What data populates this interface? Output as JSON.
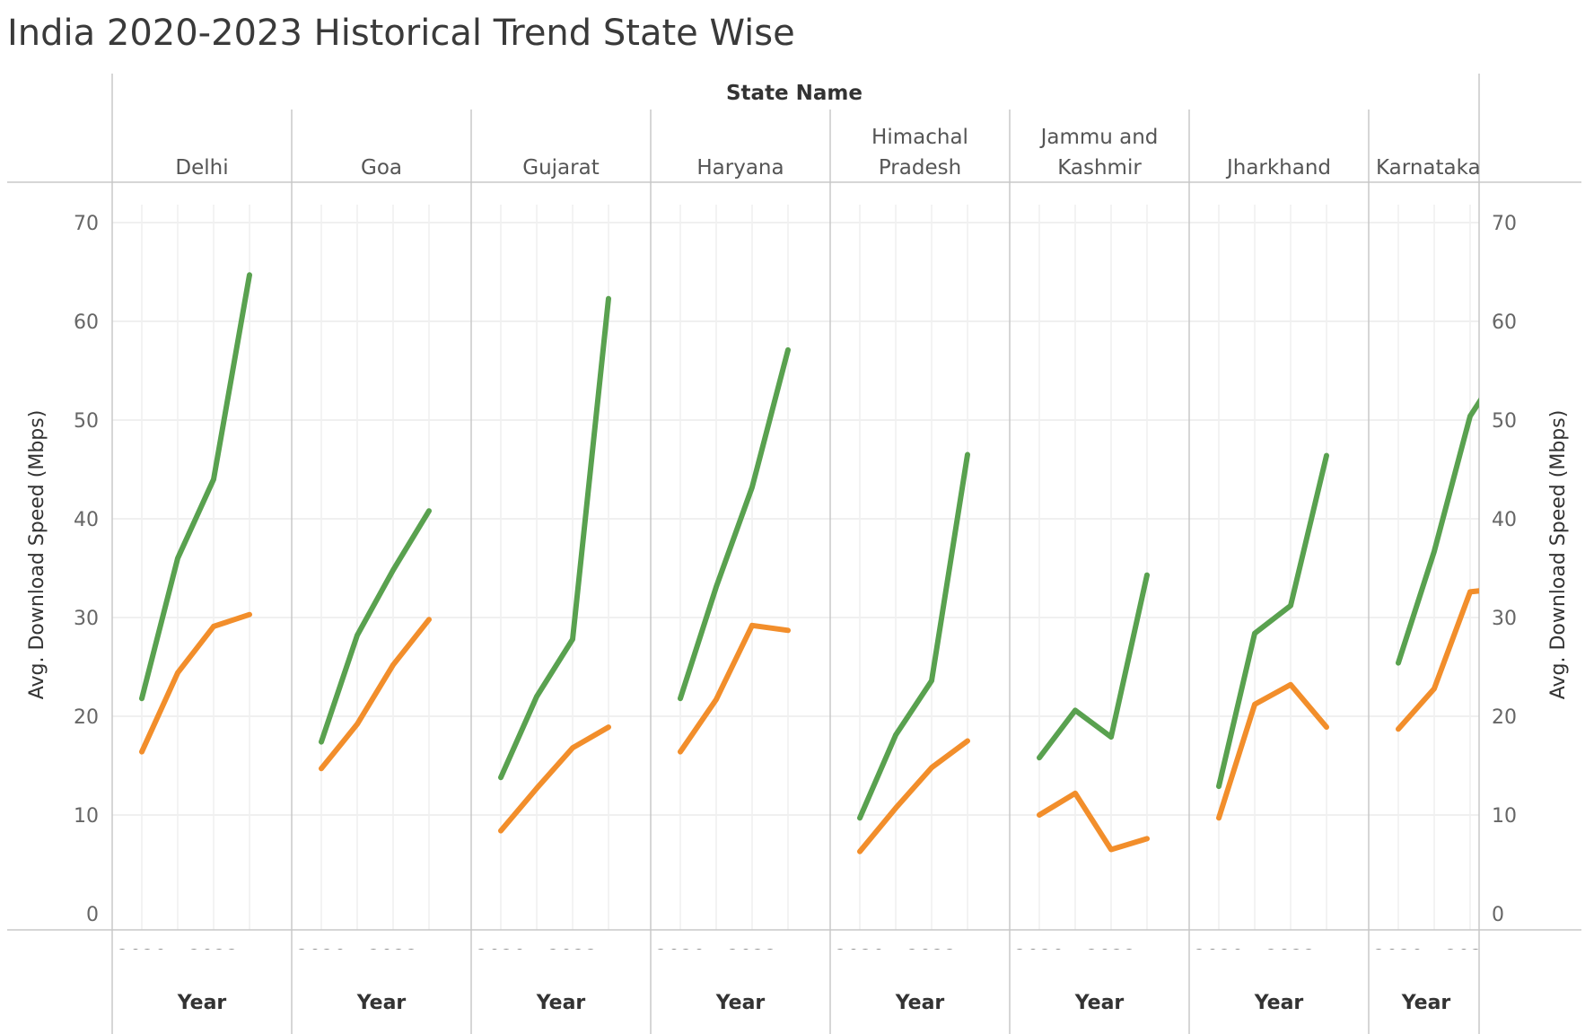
{
  "chart_data": {
    "type": "line",
    "title": "India 2020-2023 Historical Trend State Wise",
    "column_header": "State Name",
    "ylabel": "Avg. Download Speed (Mbps)",
    "xlabel": "Year",
    "ylim": [
      0,
      70
    ],
    "yticks": [
      0,
      10,
      20,
      30,
      40,
      50,
      60,
      70
    ],
    "x": [
      2020,
      2021,
      2022,
      2023
    ],
    "xticks": [
      2020,
      2022
    ],
    "grid": true,
    "colors": {
      "green": "#59a14f",
      "orange": "#f28e2b"
    },
    "panels": [
      {
        "state": "Delhi",
        "series": [
          {
            "color": "green",
            "values": [
              21.8,
              36.0,
              44.0,
              64.7
            ]
          },
          {
            "color": "orange",
            "values": [
              16.4,
              24.4,
              29.1,
              30.3
            ]
          }
        ]
      },
      {
        "state": "Goa",
        "series": [
          {
            "color": "green",
            "values": [
              17.4,
              28.2,
              34.8,
              40.8
            ]
          },
          {
            "color": "orange",
            "values": [
              14.7,
              19.2,
              25.2,
              29.8
            ]
          }
        ]
      },
      {
        "state": "Gujarat",
        "series": [
          {
            "color": "green",
            "values": [
              13.8,
              22.0,
              27.8,
              62.3
            ]
          },
          {
            "color": "orange",
            "values": [
              8.4,
              12.7,
              16.8,
              18.9
            ]
          }
        ]
      },
      {
        "state": "Haryana",
        "series": [
          {
            "color": "green",
            "values": [
              21.8,
              33.1,
              43.2,
              57.1
            ]
          },
          {
            "color": "orange",
            "values": [
              16.4,
              21.7,
              29.2,
              28.7
            ]
          }
        ]
      },
      {
        "state": "Himachal Pradesh",
        "series": [
          {
            "color": "green",
            "values": [
              9.7,
              18.1,
              23.6,
              46.5
            ]
          },
          {
            "color": "orange",
            "values": [
              6.3,
              10.7,
              14.8,
              17.5
            ]
          }
        ]
      },
      {
        "state": "Jammu and Kashmir",
        "series": [
          {
            "color": "green",
            "values": [
              15.8,
              20.6,
              17.9,
              34.3
            ]
          },
          {
            "color": "orange",
            "values": [
              10.0,
              12.2,
              6.5,
              7.6
            ]
          }
        ]
      },
      {
        "state": "Jharkhand",
        "series": [
          {
            "color": "green",
            "values": [
              12.9,
              28.4,
              31.2,
              46.4
            ]
          },
          {
            "color": "orange",
            "values": [
              9.7,
              21.2,
              23.2,
              18.9
            ]
          }
        ]
      },
      {
        "state": "Karnataka",
        "series": [
          {
            "color": "green",
            "values": [
              25.4,
              36.7,
              50.4,
              56.0
            ]
          },
          {
            "color": "orange",
            "values": [
              18.7,
              22.8,
              32.6,
              33.0
            ]
          }
        ]
      }
    ]
  }
}
